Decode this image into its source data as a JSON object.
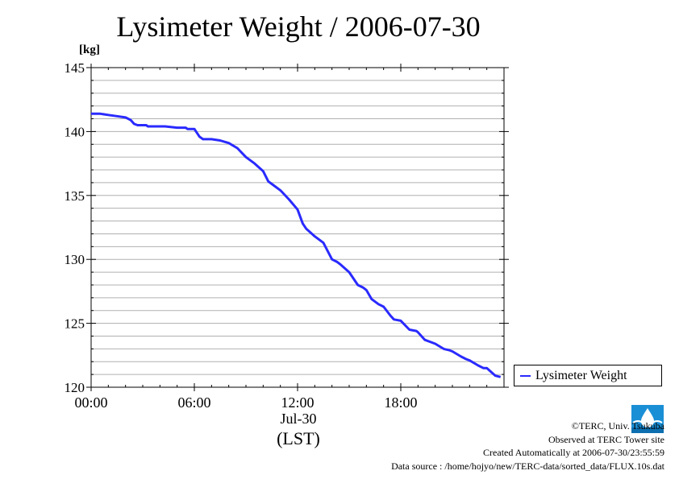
{
  "title": "Lysimeter Weight / 2006-07-30",
  "unit_label": "[kg]",
  "date_label": "Jul-30",
  "time_zone_label": "(LST)",
  "legend": {
    "label": "Lysimeter Weight"
  },
  "credits": {
    "copyright": "©TERC, Univ. Tsukuba",
    "observed": "Observed at TERC Tower site",
    "created": "Created Automatically at 2006-07-30/23:55:59",
    "source": "Data source : /home/hojyo/new/TERC-data/sorted_data/FLUX.10s.dat"
  },
  "logo": {
    "text": "TERC",
    "icon": "terc-logo-icon"
  },
  "colors": {
    "line": "#2a2aff",
    "grid": "#b0b0b0",
    "axis": "#000000",
    "logo": "#1a8fd6"
  },
  "chart_data": {
    "type": "line",
    "title": "Lysimeter Weight / 2006-07-30",
    "ylabel": "[kg]",
    "xlabel": "Jul-30 (LST)",
    "xlim": [
      0,
      24
    ],
    "ylim": [
      120,
      145
    ],
    "y_major_ticks": [
      120,
      125,
      130,
      135,
      140,
      145
    ],
    "y_tick_labels": [
      "120",
      "125",
      "130",
      "135",
      "140",
      "145"
    ],
    "y_minor_step": 1,
    "x_ticks": [
      0,
      6,
      12,
      18
    ],
    "x_tick_labels": [
      "00:00",
      "06:00",
      "12:00",
      "18:00"
    ],
    "grid": true,
    "legend_position": "outside-right-bottom",
    "series": [
      {
        "name": "Lysimeter Weight",
        "x": [
          0,
          0.5,
          1.0,
          1.5,
          2.0,
          2.3,
          2.5,
          2.7,
          3.2,
          3.3,
          4.0,
          4.3,
          5.0,
          5.5,
          5.6,
          6.0,
          6.3,
          6.5,
          7.0,
          7.5,
          8.0,
          8.5,
          9.0,
          9.5,
          10.0,
          10.3,
          10.5,
          11.0,
          11.5,
          12.0,
          12.3,
          12.5,
          13.0,
          13.5,
          14.0,
          14.3,
          14.5,
          15.0,
          15.3,
          15.5,
          15.8,
          16.0,
          16.3,
          16.7,
          17.0,
          17.4,
          17.6,
          18.0,
          18.5,
          18.9,
          19.0,
          19.4,
          19.8,
          20.0,
          20.5,
          20.8,
          21.0,
          21.5,
          21.8,
          22.0,
          22.5,
          22.8,
          23.0,
          23.5,
          23.8
        ],
        "y": [
          141.4,
          141.4,
          141.3,
          141.2,
          141.1,
          140.9,
          140.6,
          140.5,
          140.5,
          140.4,
          140.4,
          140.4,
          140.3,
          140.3,
          140.2,
          140.2,
          139.6,
          139.4,
          139.4,
          139.3,
          139.1,
          138.7,
          138.0,
          137.5,
          136.9,
          136.1,
          135.9,
          135.4,
          134.7,
          133.9,
          132.8,
          132.4,
          131.8,
          131.3,
          130.0,
          129.8,
          129.6,
          129.0,
          128.4,
          128.0,
          127.8,
          127.6,
          126.9,
          126.5,
          126.3,
          125.6,
          125.3,
          125.2,
          124.5,
          124.4,
          124.3,
          123.7,
          123.5,
          123.4,
          123.0,
          122.9,
          122.8,
          122.4,
          122.2,
          122.1,
          121.7,
          121.5,
          121.5,
          120.9,
          120.8
        ]
      }
    ]
  }
}
